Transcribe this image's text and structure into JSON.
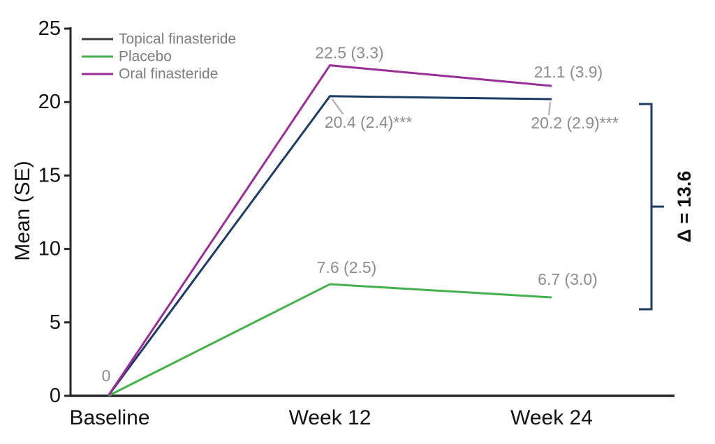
{
  "chart_data": {
    "type": "line",
    "title": "",
    "xlabel": "",
    "ylabel": "Mean (SE)",
    "categories": [
      "Baseline",
      "Week 12",
      "Week 24"
    ],
    "ylim": [
      0,
      25
    ],
    "yticks": [
      0,
      5,
      10,
      15,
      20,
      25
    ],
    "grid": false,
    "legend_position": "top-left",
    "series": [
      {
        "name": "Topical finasteride",
        "color": "#1d3b63",
        "legend_color": "#3a3a3a",
        "values": [
          0,
          20.4,
          20.2
        ],
        "point_labels": [
          "",
          "20.4 (2.4)***",
          "20.2 (2.9)***"
        ]
      },
      {
        "name": "Placebo",
        "color": "#45b04e",
        "legend_color": "#45b04e",
        "values": [
          0,
          7.6,
          6.7
        ],
        "point_labels": [
          "",
          "7.6 (2.5)",
          "6.7 (3.0)"
        ]
      },
      {
        "name": "Oral finasteride",
        "color": "#9b2d96",
        "legend_color": "#9b2d96",
        "values": [
          0,
          22.5,
          21.1
        ],
        "point_labels": [
          "0",
          "22.5 (3.3)",
          "21.1 (3.9)"
        ]
      }
    ],
    "annotations": {
      "delta_bracket": {
        "text": "Δ = 13.6",
        "from_value": 20.2,
        "to_value": 6.7,
        "color": "#1d3b63"
      }
    },
    "colors": {
      "axis": "#262626",
      "tick_text": "#111111",
      "data_label": "#8c8c8c",
      "legend_text": "#7d7d7d",
      "leader_line": "#b8b8b8"
    }
  }
}
